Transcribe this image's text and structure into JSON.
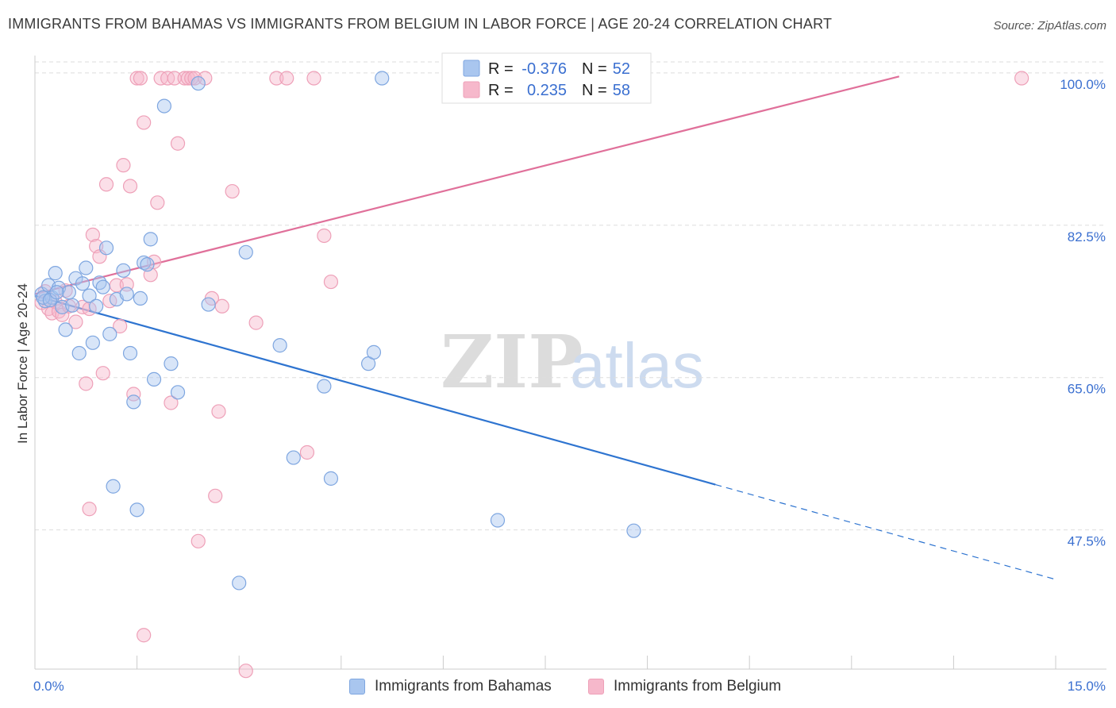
{
  "title": "IMMIGRANTS FROM BAHAMAS VS IMMIGRANTS FROM BELGIUM IN LABOR FORCE | AGE 20-24 CORRELATION CHART",
  "source": "Source: ZipAtlas.com",
  "watermark": {
    "zip": "ZIP",
    "atlas": "atlas"
  },
  "colors": {
    "blue_fill": "#a9c6ef",
    "blue_stroke": "#7ea6e0",
    "blue_line": "#2e74d0",
    "pink_fill": "#f6b8cb",
    "pink_stroke": "#eea0b8",
    "pink_line": "#e0709a",
    "tick_label": "#3a6fd0",
    "grid": "#dddddd"
  },
  "stats": {
    "r_label": "R =",
    "n_label": "N =",
    "bahamas": {
      "r": "-0.376",
      "n": "52"
    },
    "belgium": {
      "r": "0.235",
      "n": "58"
    }
  },
  "legend": {
    "bahamas": "Immigrants from Bahamas",
    "belgium": "Immigrants from Belgium"
  },
  "chart_data": {
    "type": "scatter",
    "title": "IMMIGRANTS FROM BAHAMAS VS IMMIGRANTS FROM BELGIUM IN LABOR FORCE | AGE 20-24 CORRELATION CHART",
    "xlabel": "",
    "ylabel": "In Labor Force | Age 20-24",
    "xlim": [
      0,
      15
    ],
    "ylim": [
      31.5,
      102
    ],
    "x_tick_labels": [
      "0.0%",
      "15.0%"
    ],
    "y_ticks": [
      47.5,
      65.0,
      82.5,
      100.0
    ],
    "y_tick_labels": [
      "47.5%",
      "65.0%",
      "82.5%",
      "100.0%"
    ],
    "grid": true,
    "series": [
      {
        "name": "Immigrants from Bahamas",
        "color": "#a9c6ef",
        "trend": {
          "x0": 0.0,
          "y0": 74.4,
          "x1": 10.0,
          "y1": 52.7,
          "dashed_to_x": 15.0,
          "dashed_to_y": 41.8
        },
        "points": [
          [
            0.1,
            74.6
          ],
          [
            0.15,
            73.8
          ],
          [
            0.2,
            75.6
          ],
          [
            0.25,
            74.2
          ],
          [
            0.3,
            77.0
          ],
          [
            0.35,
            75.3
          ],
          [
            0.4,
            73.1
          ],
          [
            0.45,
            70.5
          ],
          [
            0.5,
            74.8
          ],
          [
            0.55,
            73.3
          ],
          [
            0.6,
            76.4
          ],
          [
            0.65,
            67.8
          ],
          [
            0.7,
            75.8
          ],
          [
            0.75,
            77.6
          ],
          [
            0.8,
            74.4
          ],
          [
            0.85,
            69.0
          ],
          [
            0.9,
            73.2
          ],
          [
            0.95,
            75.9
          ],
          [
            1.0,
            75.4
          ],
          [
            1.05,
            79.9
          ],
          [
            1.1,
            70.0
          ],
          [
            1.15,
            52.5
          ],
          [
            1.2,
            74.0
          ],
          [
            1.3,
            77.3
          ],
          [
            1.35,
            74.6
          ],
          [
            1.4,
            67.8
          ],
          [
            1.45,
            62.2
          ],
          [
            1.5,
            49.8
          ],
          [
            1.55,
            74.1
          ],
          [
            1.6,
            78.2
          ],
          [
            1.65,
            78.0
          ],
          [
            1.7,
            80.9
          ],
          [
            1.75,
            64.8
          ],
          [
            1.9,
            96.2
          ],
          [
            2.0,
            66.6
          ],
          [
            2.1,
            63.3
          ],
          [
            2.4,
            98.8
          ],
          [
            2.55,
            73.4
          ],
          [
            3.0,
            41.4
          ],
          [
            3.1,
            79.4
          ],
          [
            3.6,
            68.7
          ],
          [
            3.8,
            55.8
          ],
          [
            4.25,
            64.0
          ],
          [
            4.35,
            53.4
          ],
          [
            4.9,
            66.6
          ],
          [
            4.98,
            67.9
          ],
          [
            5.1,
            99.4
          ],
          [
            6.8,
            48.6
          ],
          [
            8.8,
            47.4
          ],
          [
            0.12,
            74.2
          ],
          [
            0.22,
            73.9
          ],
          [
            0.32,
            74.8
          ]
        ]
      },
      {
        "name": "Immigrants from Belgium",
        "color": "#f6b8cb",
        "trend": {
          "x0": 0.0,
          "y0": 74.6,
          "x1": 12.7,
          "y1": 99.6
        },
        "points": [
          [
            0.1,
            73.6
          ],
          [
            0.15,
            74.9
          ],
          [
            0.2,
            72.9
          ],
          [
            0.25,
            72.4
          ],
          [
            0.3,
            73.7
          ],
          [
            0.35,
            72.6
          ],
          [
            0.4,
            72.2
          ],
          [
            0.45,
            75.0
          ],
          [
            0.5,
            73.2
          ],
          [
            0.6,
            71.4
          ],
          [
            0.7,
            73.1
          ],
          [
            0.75,
            64.3
          ],
          [
            0.8,
            72.9
          ],
          [
            0.85,
            81.4
          ],
          [
            0.9,
            80.1
          ],
          [
            0.95,
            78.9
          ],
          [
            1.0,
            65.5
          ],
          [
            1.05,
            87.2
          ],
          [
            1.1,
            73.8
          ],
          [
            1.2,
            75.6
          ],
          [
            1.25,
            70.9
          ],
          [
            1.3,
            89.4
          ],
          [
            1.35,
            75.7
          ],
          [
            1.4,
            87.0
          ],
          [
            1.45,
            63.1
          ],
          [
            1.5,
            99.4
          ],
          [
            1.55,
            99.4
          ],
          [
            1.6,
            94.3
          ],
          [
            1.7,
            76.8
          ],
          [
            1.75,
            78.3
          ],
          [
            1.8,
            85.1
          ],
          [
            1.85,
            99.4
          ],
          [
            1.95,
            99.4
          ],
          [
            2.0,
            62.1
          ],
          [
            2.05,
            99.4
          ],
          [
            2.1,
            91.9
          ],
          [
            2.2,
            99.4
          ],
          [
            2.25,
            99.4
          ],
          [
            2.3,
            99.4
          ],
          [
            2.35,
            99.4
          ],
          [
            2.4,
            46.2
          ],
          [
            2.5,
            99.4
          ],
          [
            2.6,
            74.1
          ],
          [
            2.65,
            51.4
          ],
          [
            2.7,
            61.1
          ],
          [
            2.75,
            73.2
          ],
          [
            2.9,
            86.4
          ],
          [
            3.1,
            31.3
          ],
          [
            3.25,
            71.3
          ],
          [
            3.55,
            99.4
          ],
          [
            3.7,
            99.4
          ],
          [
            4.0,
            56.4
          ],
          [
            4.1,
            99.4
          ],
          [
            4.25,
            81.3
          ],
          [
            4.35,
            76.0
          ],
          [
            1.6,
            35.4
          ],
          [
            0.8,
            49.9
          ],
          [
            14.5,
            99.4
          ]
        ]
      }
    ]
  }
}
